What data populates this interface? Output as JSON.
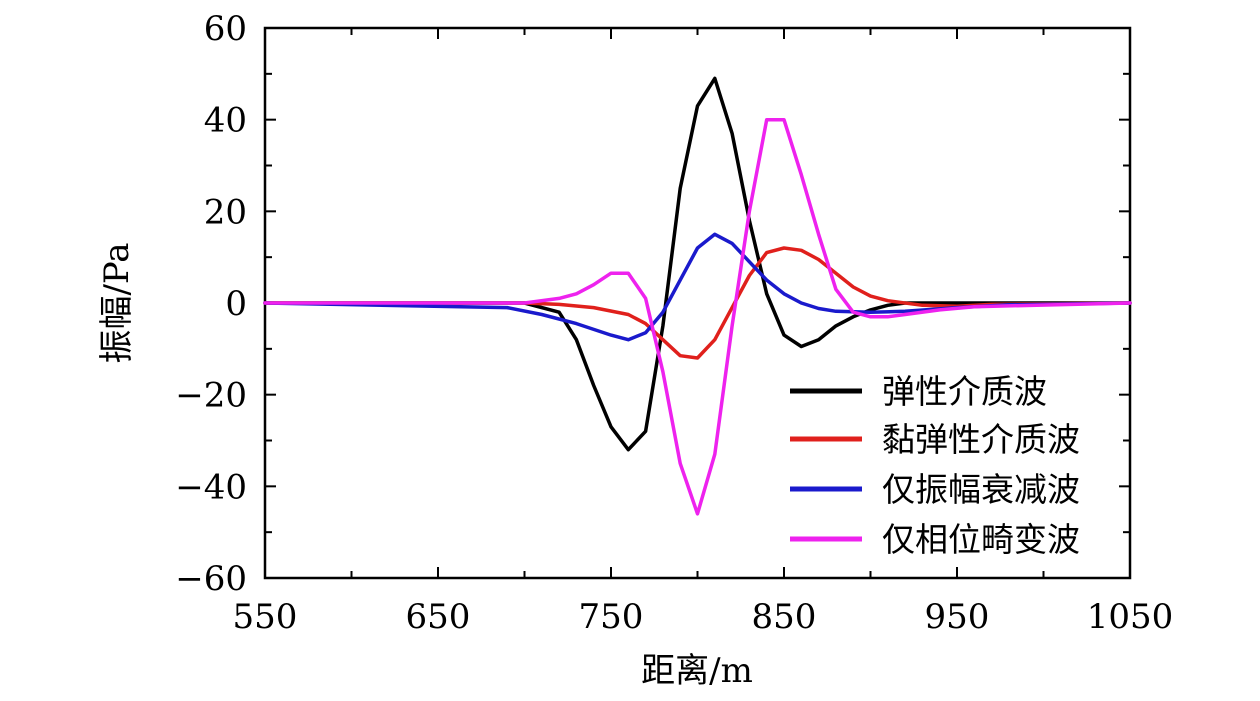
{
  "chart_data": {
    "type": "line",
    "xlabel": "距离/m",
    "ylabel": "振幅/Pa",
    "xlim": [
      550,
      1050
    ],
    "ylim": [
      -60,
      60
    ],
    "xticks": [
      550,
      650,
      750,
      850,
      950,
      1050
    ],
    "yticks": [
      -60,
      -40,
      -20,
      0,
      20,
      40,
      60
    ],
    "legend_position": "lower-right",
    "series": [
      {
        "name": "弹性介质波",
        "color": "#000000",
        "points": [
          [
            550,
            0
          ],
          [
            700,
            0
          ],
          [
            720,
            -2
          ],
          [
            730,
            -8
          ],
          [
            740,
            -18
          ],
          [
            750,
            -27
          ],
          [
            760,
            -32
          ],
          [
            770,
            -28
          ],
          [
            780,
            -5
          ],
          [
            790,
            25
          ],
          [
            800,
            43
          ],
          [
            810,
            49
          ],
          [
            820,
            37
          ],
          [
            830,
            18
          ],
          [
            840,
            2
          ],
          [
            850,
            -7
          ],
          [
            860,
            -9.5
          ],
          [
            870,
            -8
          ],
          [
            880,
            -5
          ],
          [
            890,
            -3
          ],
          [
            900,
            -1.5
          ],
          [
            910,
            -0.5
          ],
          [
            920,
            0
          ],
          [
            1050,
            0
          ]
        ]
      },
      {
        "name": "黏弹性介质波",
        "color": "#e0201c",
        "points": [
          [
            550,
            0
          ],
          [
            700,
            0
          ],
          [
            720,
            -0.3
          ],
          [
            740,
            -1
          ],
          [
            760,
            -2.5
          ],
          [
            770,
            -4.5
          ],
          [
            780,
            -8
          ],
          [
            790,
            -11.5
          ],
          [
            800,
            -12
          ],
          [
            810,
            -8
          ],
          [
            820,
            -1
          ],
          [
            830,
            6
          ],
          [
            840,
            11
          ],
          [
            850,
            12
          ],
          [
            860,
            11.5
          ],
          [
            870,
            9.5
          ],
          [
            880,
            6.5
          ],
          [
            890,
            3.5
          ],
          [
            900,
            1.5
          ],
          [
            910,
            0.5
          ],
          [
            930,
            -0.5
          ],
          [
            950,
            -0.7
          ],
          [
            970,
            -0.3
          ],
          [
            1050,
            0
          ]
        ]
      },
      {
        "name": "仅振幅衰减波",
        "color": "#1a1acc",
        "points": [
          [
            550,
            0
          ],
          [
            690,
            -1
          ],
          [
            710,
            -2.5
          ],
          [
            730,
            -4.5
          ],
          [
            750,
            -7
          ],
          [
            760,
            -8
          ],
          [
            770,
            -6.5
          ],
          [
            780,
            -2
          ],
          [
            790,
            5
          ],
          [
            800,
            12
          ],
          [
            810,
            15
          ],
          [
            820,
            13
          ],
          [
            830,
            9
          ],
          [
            840,
            5
          ],
          [
            850,
            2
          ],
          [
            860,
            0
          ],
          [
            870,
            -1.2
          ],
          [
            880,
            -1.8
          ],
          [
            900,
            -2
          ],
          [
            920,
            -1.8
          ],
          [
            950,
            -1
          ],
          [
            980,
            -0.4
          ],
          [
            1050,
            0
          ]
        ]
      },
      {
        "name": "仅相位畸变波",
        "color": "#ee22ee",
        "points": [
          [
            550,
            0
          ],
          [
            700,
            0
          ],
          [
            720,
            1
          ],
          [
            730,
            2
          ],
          [
            740,
            4
          ],
          [
            750,
            6.5
          ],
          [
            760,
            6.5
          ],
          [
            770,
            1
          ],
          [
            780,
            -15
          ],
          [
            790,
            -35
          ],
          [
            800,
            -46
          ],
          [
            810,
            -33
          ],
          [
            820,
            -5
          ],
          [
            830,
            20
          ],
          [
            840,
            40
          ],
          [
            850,
            40
          ],
          [
            860,
            28
          ],
          [
            870,
            15
          ],
          [
            880,
            3
          ],
          [
            890,
            -2
          ],
          [
            900,
            -3
          ],
          [
            910,
            -3
          ],
          [
            920,
            -2.5
          ],
          [
            940,
            -1.5
          ],
          [
            960,
            -0.8
          ],
          [
            1050,
            0
          ]
        ]
      }
    ]
  }
}
